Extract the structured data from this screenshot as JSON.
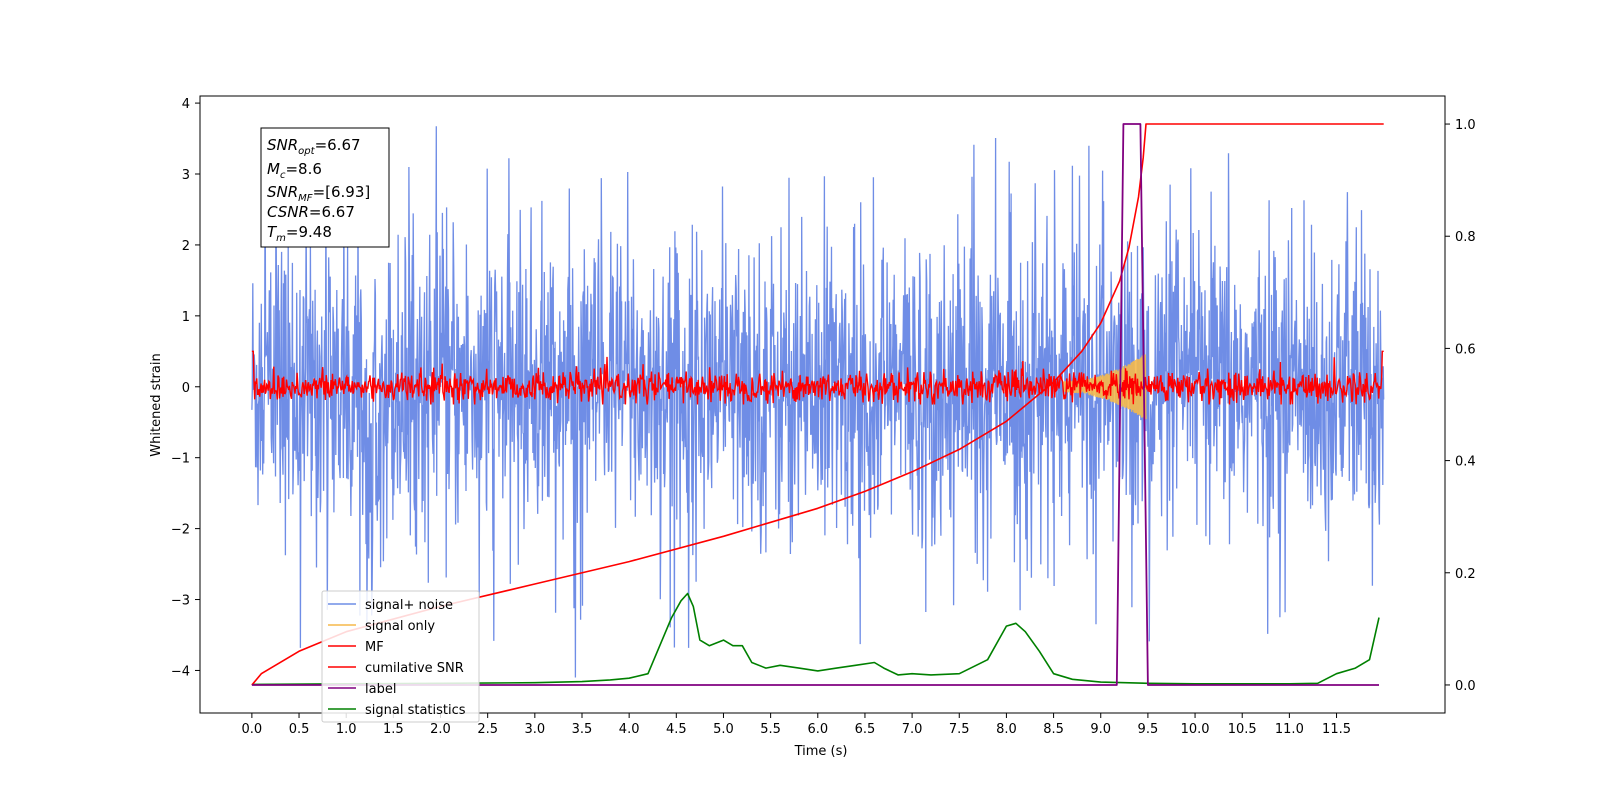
{
  "chart_data": {
    "type": "line",
    "xlabel": "Time (s)",
    "ylabel": "Whitened strain",
    "xlim": [
      -0.55,
      12.65
    ],
    "ylim": [
      -4.6,
      4.1
    ],
    "y2lim": [
      -0.05,
      1.05
    ],
    "x_ticks": [
      "0.0",
      "0.5",
      "1.0",
      "1.5",
      "2.0",
      "2.5",
      "3.0",
      "3.5",
      "4.0",
      "4.5",
      "5.0",
      "5.5",
      "6.0",
      "6.5",
      "7.0",
      "7.5",
      "8.0",
      "8.5",
      "9.0",
      "9.5",
      "10.0",
      "10.5",
      "11.0",
      "11.5"
    ],
    "y_ticks": [
      "4",
      "3",
      "2",
      "1",
      "0",
      "−1",
      "−2",
      "−3",
      "−4"
    ],
    "y2_ticks": [
      "1.0",
      "0.8",
      "0.6",
      "0.4",
      "0.2",
      "0.0"
    ],
    "grid": false,
    "legend_position": "lower-left",
    "info_box": {
      "snr_opt": "=6.67",
      "mc": "=8.6",
      "snr_mf": "=[6.93]",
      "csnr": "=6.67",
      "tm": "=9.48"
    },
    "series": [
      {
        "name": "signal+ noise",
        "color": "#6f8de6",
        "axis": "left",
        "description": "whitened noise, amplitude about ±2.5 with spikes to ±3.7",
        "x_range": [
          0.0,
          12.0
        ]
      },
      {
        "name": "signal only",
        "color": "#f5b94a",
        "axis": "left",
        "description": "chirp growing to about ±0.45, ending at 9.48 s",
        "x_range": [
          8.6,
          9.48
        ]
      },
      {
        "name": "MF",
        "color": "#ff0000",
        "axis": "left",
        "description": "matched-filter output, amplitude about ±0.25 with peaks to 0.5",
        "x_range": [
          0.0,
          12.0
        ]
      },
      {
        "name": "cumilative SNR",
        "color": "#ff0000",
        "axis": "right",
        "x": [
          0.0,
          0.1,
          0.5,
          1.0,
          2.0,
          3.0,
          4.0,
          5.0,
          6.0,
          6.5,
          7.0,
          7.5,
          8.0,
          8.5,
          8.8,
          9.0,
          9.2,
          9.3,
          9.4,
          9.45,
          9.48,
          12.0
        ],
        "y": [
          0.0,
          0.02,
          0.06,
          0.095,
          0.14,
          0.18,
          0.22,
          0.265,
          0.315,
          0.345,
          0.38,
          0.42,
          0.47,
          0.54,
          0.595,
          0.645,
          0.72,
          0.78,
          0.87,
          0.94,
          1.0,
          1.0
        ]
      },
      {
        "name": "label",
        "color": "#800080",
        "axis": "right",
        "x": [
          0.0,
          9.17,
          9.24,
          9.42,
          9.5,
          11.95
        ],
        "y": [
          0.0,
          0.0,
          1.0,
          1.0,
          0.0,
          0.0
        ]
      },
      {
        "name": "signal statistics",
        "color": "#008000",
        "axis": "right",
        "x": [
          0.0,
          1.0,
          2.0,
          3.0,
          3.5,
          3.8,
          4.0,
          4.2,
          4.3,
          4.45,
          4.55,
          4.62,
          4.68,
          4.75,
          4.85,
          5.0,
          5.1,
          5.2,
          5.3,
          5.45,
          5.6,
          5.8,
          6.0,
          6.2,
          6.4,
          6.6,
          6.7,
          6.85,
          7.0,
          7.2,
          7.5,
          7.8,
          8.0,
          8.1,
          8.2,
          8.35,
          8.5,
          8.7,
          9.0,
          9.5,
          10.0,
          10.5,
          11.0,
          11.3,
          11.5,
          11.7,
          11.85,
          11.95
        ],
        "y": [
          0.001,
          0.002,
          0.003,
          0.004,
          0.006,
          0.009,
          0.012,
          0.02,
          0.06,
          0.12,
          0.15,
          0.163,
          0.14,
          0.08,
          0.07,
          0.08,
          0.07,
          0.07,
          0.04,
          0.03,
          0.035,
          0.03,
          0.025,
          0.03,
          0.035,
          0.04,
          0.03,
          0.018,
          0.02,
          0.018,
          0.02,
          0.045,
          0.105,
          0.11,
          0.095,
          0.06,
          0.02,
          0.01,
          0.005,
          0.003,
          0.002,
          0.002,
          0.002,
          0.003,
          0.02,
          0.03,
          0.045,
          0.12
        ]
      }
    ]
  }
}
